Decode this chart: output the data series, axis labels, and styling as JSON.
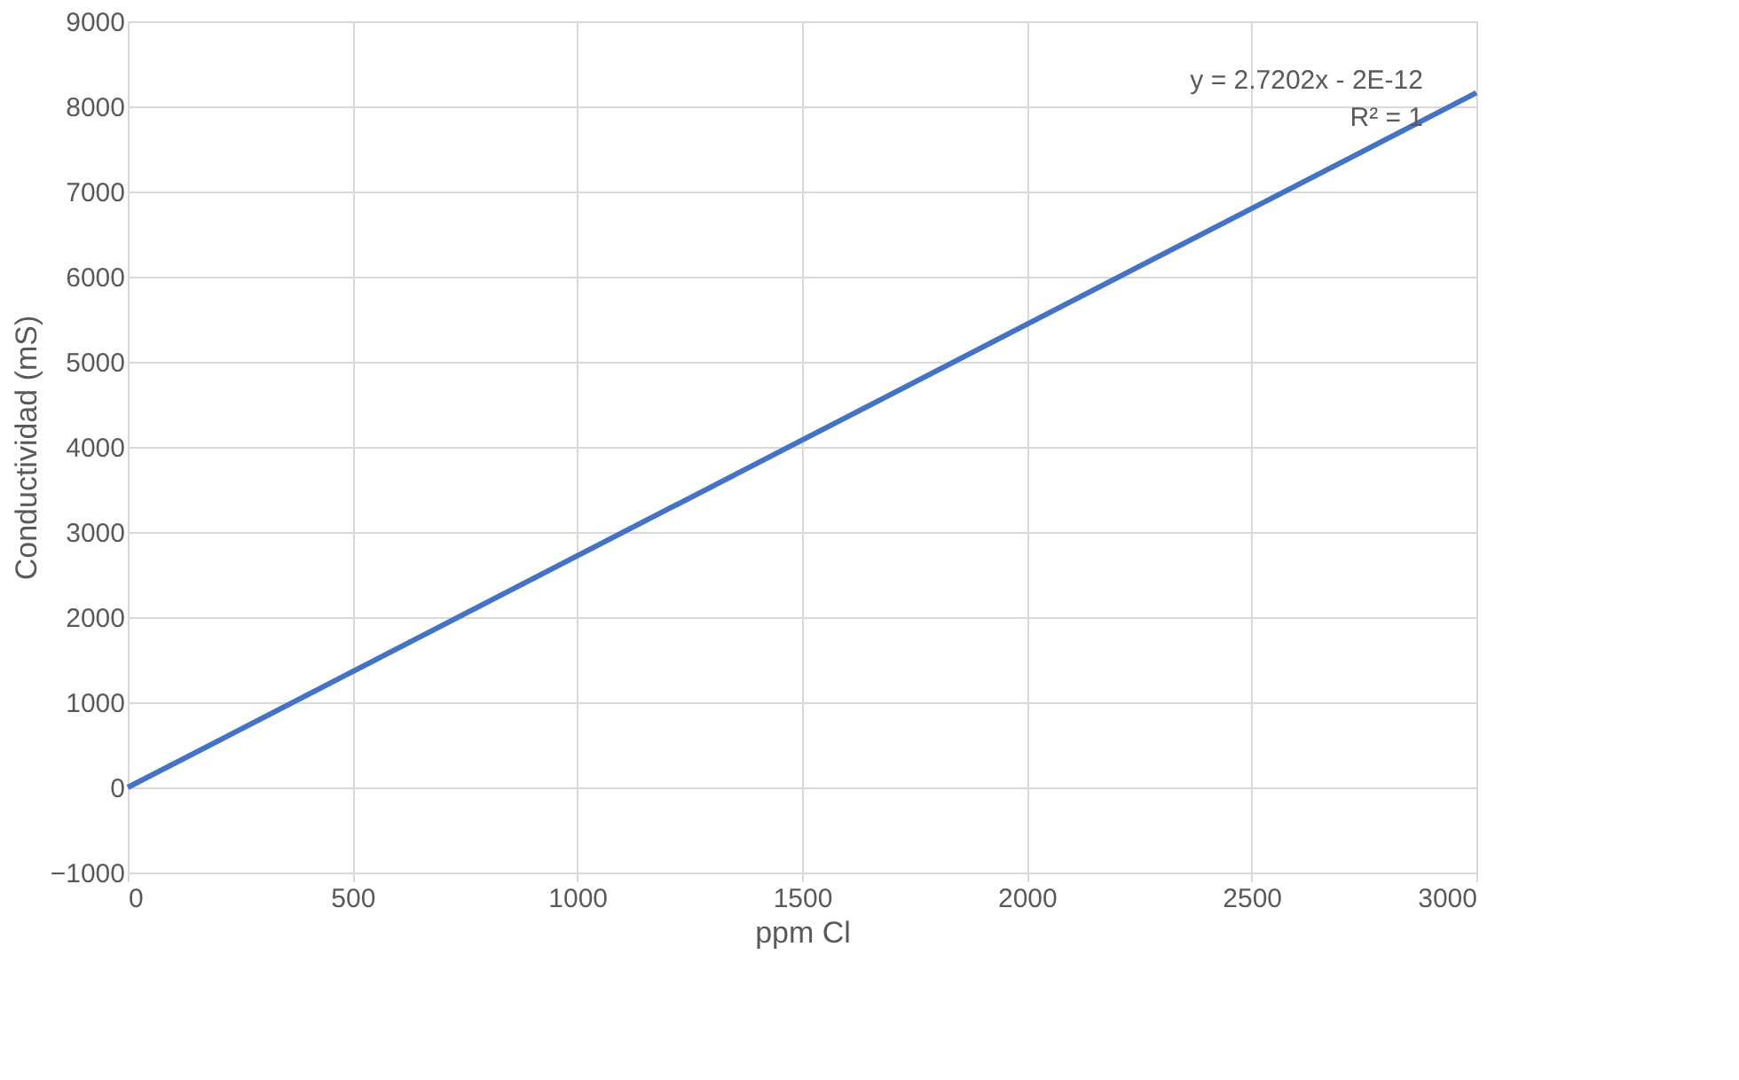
{
  "chart_data": {
    "type": "line",
    "xlabel": "ppm Cl",
    "ylabel": "Conductividad (mS)",
    "series": [
      {
        "x": [
          0,
          3000
        ],
        "values": [
          0,
          8160
        ],
        "color": "#4472c4"
      }
    ],
    "xlim": [
      0,
      3000
    ],
    "xticks": [
      0,
      500,
      1000,
      1500,
      2000,
      2500,
      3000
    ],
    "ylim": [
      -1000,
      9000
    ],
    "yticks": [
      -1000,
      0,
      1000,
      2000,
      3000,
      4000,
      5000,
      6000,
      7000,
      8000,
      9000
    ],
    "grid": true,
    "marker": "none",
    "line_style": "solid",
    "annotations": [
      "y = 2.7202x - 2E-12",
      "R² = 1"
    ]
  }
}
